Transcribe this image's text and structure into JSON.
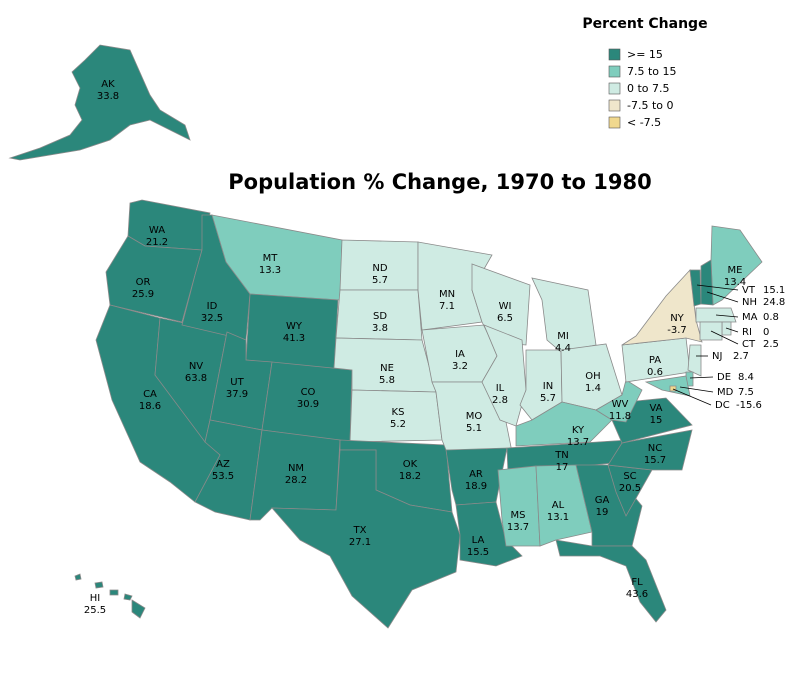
{
  "title": "Population % Change, 1970 to 1980",
  "legend": {
    "title": "Percent Change",
    "classes": [
      {
        "label": ">= 15",
        "color": "#2b877b"
      },
      {
        "label": "7.5 to 15",
        "color": "#7fcdbd"
      },
      {
        "label": "0 to 7.5",
        "color": "#cfebe3"
      },
      {
        "label": "-7.5 to 0",
        "color": "#efe6cb"
      },
      {
        "label": "< -7.5",
        "color": "#f0d88e"
      }
    ],
    "breaks": [
      15,
      7.5,
      0,
      -7.5
    ]
  },
  "states": [
    {
      "abbr": "AK",
      "value": 33.8
    },
    {
      "abbr": "HI",
      "value": 25.5
    },
    {
      "abbr": "WA",
      "value": 21.2
    },
    {
      "abbr": "OR",
      "value": 25.9
    },
    {
      "abbr": "CA",
      "value": 18.6
    },
    {
      "abbr": "NV",
      "value": 63.8
    },
    {
      "abbr": "ID",
      "value": 32.5
    },
    {
      "abbr": "MT",
      "value": 13.3
    },
    {
      "abbr": "WY",
      "value": 41.3
    },
    {
      "abbr": "UT",
      "value": 37.9
    },
    {
      "abbr": "CO",
      "value": 30.9
    },
    {
      "abbr": "AZ",
      "value": 53.5
    },
    {
      "abbr": "NM",
      "value": 28.2
    },
    {
      "abbr": "ND",
      "value": 5.7
    },
    {
      "abbr": "SD",
      "value": 3.8
    },
    {
      "abbr": "NE",
      "value": 5.8
    },
    {
      "abbr": "KS",
      "value": 5.2
    },
    {
      "abbr": "OK",
      "value": 18.2
    },
    {
      "abbr": "TX",
      "value": 27.1
    },
    {
      "abbr": "MN",
      "value": 7.1
    },
    {
      "abbr": "IA",
      "value": 3.2
    },
    {
      "abbr": "MO",
      "value": 5.1
    },
    {
      "abbr": "AR",
      "value": 18.9
    },
    {
      "abbr": "LA",
      "value": 15.5
    },
    {
      "abbr": "WI",
      "value": 6.5
    },
    {
      "abbr": "IL",
      "value": 2.8
    },
    {
      "abbr": "IN",
      "value": 5.7
    },
    {
      "abbr": "MI",
      "value": 4.4
    },
    {
      "abbr": "OH",
      "value": 1.4
    },
    {
      "abbr": "KY",
      "value": 13.7
    },
    {
      "abbr": "TN",
      "value": 17
    },
    {
      "abbr": "MS",
      "value": 13.7
    },
    {
      "abbr": "AL",
      "value": 13.1
    },
    {
      "abbr": "GA",
      "value": 19
    },
    {
      "abbr": "FL",
      "value": 43.6
    },
    {
      "abbr": "SC",
      "value": 20.5
    },
    {
      "abbr": "NC",
      "value": 15.7
    },
    {
      "abbr": "VA",
      "value": 15
    },
    {
      "abbr": "WV",
      "value": 11.8
    },
    {
      "abbr": "PA",
      "value": 0.6
    },
    {
      "abbr": "NY",
      "value": -3.7
    },
    {
      "abbr": "ME",
      "value": 13.4
    },
    {
      "abbr": "VT",
      "value": 15.1
    },
    {
      "abbr": "NH",
      "value": 24.8
    },
    {
      "abbr": "MA",
      "value": 0.8
    },
    {
      "abbr": "RI",
      "value": 0
    },
    {
      "abbr": "CT",
      "value": 2.5
    },
    {
      "abbr": "NJ",
      "value": 2.7
    },
    {
      "abbr": "DE",
      "value": 8.4
    },
    {
      "abbr": "MD",
      "value": 7.5
    },
    {
      "abbr": "DC",
      "value": -15.6
    }
  ]
}
